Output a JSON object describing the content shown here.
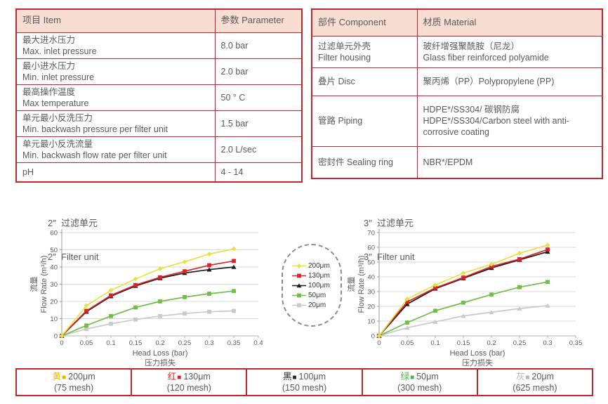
{
  "spec_table": {
    "headers": {
      "item": "项目 Item",
      "parameter": "参数 Parameter"
    },
    "rows": [
      {
        "zh": "最大进水压力",
        "en": "Max. inlet pressure",
        "value": "8.0 bar"
      },
      {
        "zh": "最小进水压力",
        "en": "Min. inlet pressure",
        "value": "2.0 bar"
      },
      {
        "zh": "最高操作温度",
        "en": "Max temperature",
        "value": "50 ° C"
      },
      {
        "zh": "单元最小反洗压力",
        "en": "Min. backwash pressure per filter unit",
        "value": "1.5 bar"
      },
      {
        "zh": "单元最小反洗流量",
        "en": "Min. backwash flow rate per filter unit",
        "value": "2.0 L/sec"
      },
      {
        "zh": "pH",
        "en": "",
        "value": "4 - 14"
      }
    ]
  },
  "material_table": {
    "headers": {
      "component": "部件 Component",
      "material": "材质 Material"
    },
    "rows": [
      {
        "component_zh": "过滤单元外壳",
        "component_en": "Filter housing",
        "material_zh": "玻纤增强聚酰胺（尼龙）",
        "material_en": "Glass fiber reinforced polyamide"
      },
      {
        "component_zh": "叠片 Disc",
        "component_en": "",
        "material_zh": "聚丙烯（PP）Polypropylene (PP)",
        "material_en": ""
      },
      {
        "component_zh": "管路 Piping",
        "component_en": "",
        "material_zh": "HDPE*/SS304/ 碳钢防腐",
        "material_en": "HDPE*/SS304/Carbon steel with anti-corrosive coating"
      },
      {
        "component_zh": "密封件 Sealing ring",
        "component_en": "",
        "material_zh": "NBR*/EPDM",
        "material_en": ""
      }
    ]
  },
  "chart_data": [
    {
      "type": "line",
      "title_zh": "2″  过滤单元",
      "title_en": "2″  Filter unit",
      "xlabel": "Head Loss (bar)",
      "xlabel_zh": "压力损失",
      "ylabel_zh": "流量",
      "ylabel": "Flow Rate (m³/h)",
      "xlim": [
        0,
        0.4
      ],
      "ylim": [
        0,
        60
      ],
      "xticks": [
        0,
        0.05,
        0.1,
        0.15,
        0.2,
        0.25,
        0.3,
        0.35,
        0.4
      ],
      "yticks": [
        0,
        10,
        20,
        30,
        40,
        50,
        60
      ],
      "grid": true,
      "legend_position": "shared-right",
      "x": [
        0,
        0.05,
        0.1,
        0.15,
        0.2,
        0.25,
        0.3,
        0.35
      ],
      "series": [
        {
          "name": "200μm",
          "color": "#e6e243",
          "marker": "diamond",
          "values": [
            0,
            17.5,
            26.5,
            33,
            39,
            43,
            47.5,
            50.5
          ]
        },
        {
          "name": "130μm",
          "color": "#de2228",
          "marker": "square",
          "values": [
            0,
            14.5,
            23.5,
            29.5,
            34,
            37.5,
            41,
            43.5
          ]
        },
        {
          "name": "100μm",
          "color": "#1a1a1a",
          "marker": "triangle",
          "values": [
            0,
            14,
            23,
            29,
            33.5,
            36.5,
            38.5,
            40
          ]
        },
        {
          "name": "50μm",
          "color": "#6fbe45",
          "marker": "square",
          "values": [
            0,
            6,
            11.5,
            16.5,
            20,
            22.5,
            24.5,
            26
          ]
        },
        {
          "name": "20μm",
          "color": "#c9c9c9",
          "marker": "square",
          "values": [
            0,
            4,
            7,
            9.5,
            11.5,
            13,
            14,
            14.5
          ]
        }
      ]
    },
    {
      "type": "line",
      "title_zh": "3″  过滤单元",
      "title_en": "3″  Filter unit",
      "xlabel": "Head Loss (bar)",
      "xlabel_zh": "压力损失",
      "ylabel_zh": "流量",
      "ylabel": "Flow Rate (m³/h)",
      "xlim": [
        0,
        0.35
      ],
      "ylim": [
        0,
        70
      ],
      "xticks": [
        0,
        0.05,
        0.1,
        0.15,
        0.2,
        0.25,
        0.3,
        0.35
      ],
      "yticks": [
        0,
        10,
        20,
        30,
        40,
        50,
        60,
        70
      ],
      "grid": true,
      "legend_position": "shared-left",
      "x": [
        0,
        0.05,
        0.1,
        0.15,
        0.2,
        0.25,
        0.3
      ],
      "series": [
        {
          "name": "200μm",
          "color": "#e6e243",
          "marker": "diamond",
          "values": [
            0,
            25,
            34.5,
            42.5,
            48.5,
            56,
            61.5
          ]
        },
        {
          "name": "130μm",
          "color": "#de2228",
          "marker": "square",
          "values": [
            0,
            23,
            32.5,
            39.5,
            47,
            52,
            58.5
          ]
        },
        {
          "name": "100μm",
          "color": "#1a1a1a",
          "marker": "triangle",
          "values": [
            0,
            21.5,
            32,
            39,
            46,
            51.5,
            57
          ]
        },
        {
          "name": "50μm",
          "color": "#6fbe45",
          "marker": "square",
          "values": [
            0,
            9,
            17,
            22.5,
            28,
            33,
            36.5
          ]
        },
        {
          "name": "20μm",
          "color": "#c9c9c9",
          "marker": "triangle",
          "values": [
            0,
            5.5,
            9.5,
            13.5,
            16,
            18.5,
            20.5
          ]
        }
      ]
    }
  ],
  "legend": {
    "items": [
      {
        "label": "200μm",
        "color": "#e6e243",
        "marker": "diamond"
      },
      {
        "label": "130μm",
        "color": "#de2228",
        "marker": "square"
      },
      {
        "label": "100μm",
        "color": "#1a1a1a",
        "marker": "triangle"
      },
      {
        "label": "50μm",
        "color": "#6fbe45",
        "marker": "square"
      },
      {
        "label": "20μm",
        "color": "#c9c9c9",
        "marker": "square"
      }
    ]
  },
  "color_key": {
    "cells": [
      {
        "color_zh": "黄",
        "size": "200μm",
        "mesh": "(75 mesh)",
        "color": "#f2b200"
      },
      {
        "color_zh": "红",
        "size": "130μm",
        "mesh": "(120 mesh)",
        "color": "#d92025"
      },
      {
        "color_zh": "黑",
        "size": "100μm",
        "mesh": "(150 mesh)",
        "color": "#262626"
      },
      {
        "color_zh": "绿",
        "size": "50μm",
        "mesh": "(300 mesh)",
        "color": "#4eb04e"
      },
      {
        "color_zh": "灰",
        "size": "20μm",
        "mesh": "(625 mesh)",
        "color": "#b3b3b3"
      }
    ]
  },
  "colors": {
    "table_border": "#c0272c",
    "table_header_bg": "#f8ddd2",
    "body_text": "#595959",
    "grid_line": "#d8d8d8"
  }
}
